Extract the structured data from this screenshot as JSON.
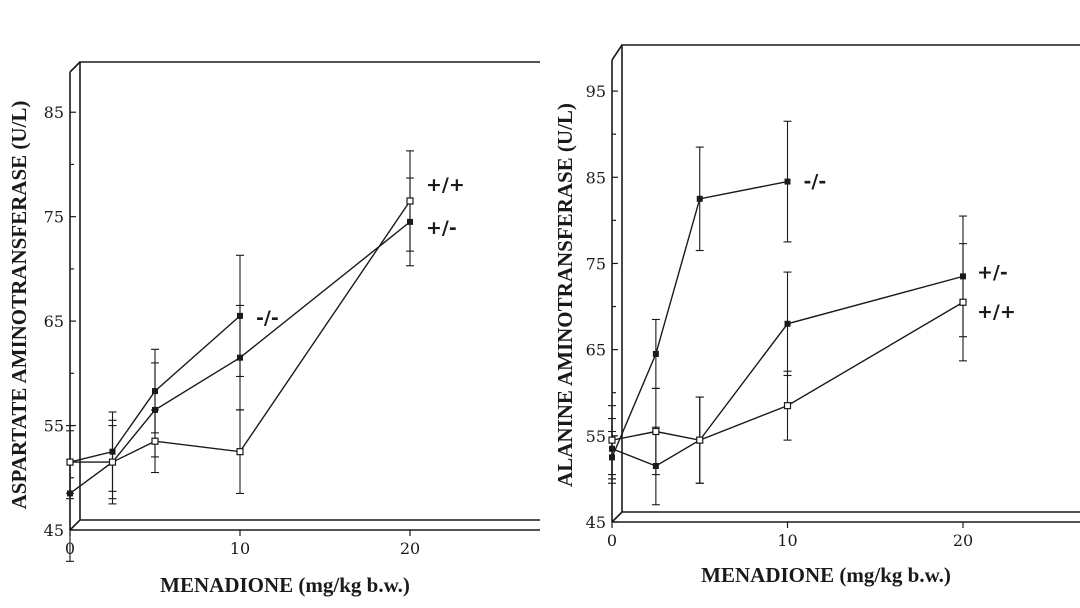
{
  "chart_data": [
    {
      "type": "line",
      "panel": "left",
      "title": "",
      "xlabel": "MENADIONE (mg/kg b.w.)",
      "ylabel": "ASPARTATE AMINOTRANSFERASE (U/L)",
      "xlim": [
        0,
        28
      ],
      "ylim": [
        45,
        90
      ],
      "xticks": [
        0,
        10,
        20
      ],
      "yticks": [
        45,
        55,
        65,
        75,
        85
      ],
      "series": [
        {
          "name": "-/-",
          "marker": "filled",
          "x": [
            0,
            2.5,
            5,
            10
          ],
          "y": [
            51.5,
            52.5,
            58.3,
            65.5
          ],
          "err": [
            3.5,
            3.8,
            4.0,
            5.8
          ]
        },
        {
          "name": "+/-",
          "marker": "filled",
          "x": [
            0,
            2.5,
            5,
            10,
            20
          ],
          "y": [
            48.5,
            51.5,
            56.5,
            61.5,
            74.5
          ],
          "err": [
            6.5,
            4.0,
            4.5,
            5.0,
            4.2
          ]
        },
        {
          "name": "+/+",
          "marker": "open",
          "x": [
            0,
            2.5,
            5,
            10,
            20
          ],
          "y": [
            51.5,
            51.5,
            53.5,
            52.5,
            76.5
          ],
          "err": [
            3.0,
            3.5,
            3.0,
            4.0,
            4.8
          ]
        }
      ]
    },
    {
      "type": "line",
      "panel": "right",
      "title": "",
      "xlabel": "MENADIONE (mg/kg b.w.)",
      "ylabel": "ALANINE AMINOTRANSFERASE (U/L)",
      "xlim": [
        0,
        27
      ],
      "ylim": [
        45,
        100
      ],
      "xticks": [
        0,
        10,
        20
      ],
      "yticks": [
        45,
        55,
        65,
        75,
        85,
        95
      ],
      "series": [
        {
          "name": "-/-",
          "marker": "filled",
          "x": [
            0,
            2.5,
            5,
            10
          ],
          "y": [
            52.5,
            64.5,
            82.5,
            84.5
          ],
          "err": [
            3.0,
            4.0,
            6.0,
            7.0
          ]
        },
        {
          "name": "+/-",
          "marker": "filled",
          "x": [
            0,
            2.5,
            5,
            10,
            20
          ],
          "y": [
            53.5,
            51.5,
            54.5,
            68.0,
            73.5
          ],
          "err": [
            3.5,
            4.5,
            5.0,
            6.0,
            7.0
          ]
        },
        {
          "name": "+/+",
          "marker": "open",
          "x": [
            0,
            2.5,
            5,
            10,
            20
          ],
          "y": [
            54.5,
            55.5,
            54.5,
            58.5,
            70.5
          ],
          "err": [
            4.0,
            5.0,
            5.0,
            4.0,
            6.8
          ]
        }
      ]
    }
  ],
  "colors": {
    "ink": "#1a1a1a",
    "background": "#ffffff"
  }
}
